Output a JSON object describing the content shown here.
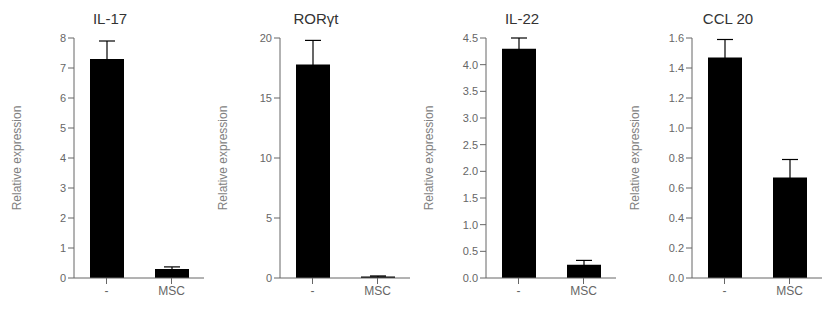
{
  "chart_data": [
    {
      "type": "bar",
      "title": "IL-17",
      "y_label": "Relative expression",
      "categories": [
        "-",
        "MSC"
      ],
      "values": [
        7.3,
        0.3
      ],
      "errors": [
        0.6,
        0.07
      ],
      "color": "#000000",
      "ylim": [
        0,
        8
      ],
      "yticks": [
        0,
        1,
        2,
        3,
        4,
        5,
        6,
        7,
        8
      ],
      "grid": false
    },
    {
      "type": "bar",
      "title": "RORγt",
      "y_label": "Relative expression",
      "categories": [
        "-",
        "MSC"
      ],
      "values": [
        17.8,
        0.12
      ],
      "errors": [
        2.0,
        0.05
      ],
      "color": "#000000",
      "ylim": [
        0,
        20
      ],
      "yticks": [
        0,
        5,
        10,
        15,
        20
      ],
      "grid": false
    },
    {
      "type": "bar",
      "title": "IL-22",
      "y_label": "Relative expression",
      "categories": [
        "-",
        "MSC"
      ],
      "values": [
        4.3,
        0.25
      ],
      "errors": [
        0.2,
        0.08
      ],
      "color": "#000000",
      "ylim": [
        0,
        4.5
      ],
      "yticks": [
        {
          "value": 0,
          "label": "0.0"
        },
        0.5,
        {
          "value": 1.0,
          "label": "1.0"
        },
        1.5,
        {
          "value": 2.0,
          "label": "2.0"
        },
        2.5,
        {
          "value": 3.0,
          "label": "3.0"
        },
        3.5,
        {
          "value": 4.0,
          "label": "4.0"
        },
        4.5
      ],
      "grid": false
    },
    {
      "type": "bar",
      "title": "CCL 20",
      "y_label": "Relative expression",
      "categories": [
        "-",
        "MSC"
      ],
      "values": [
        1.47,
        0.67
      ],
      "errors": [
        0.12,
        0.12
      ],
      "color": "#000000",
      "ylim": [
        0,
        1.6
      ],
      "yticks": [
        {
          "value": 0,
          "label": "0.0"
        },
        0.2,
        0.4,
        0.6,
        0.8,
        {
          "value": 1.0,
          "label": "1.0"
        },
        1.2,
        1.4,
        1.6
      ],
      "grid": false
    }
  ]
}
